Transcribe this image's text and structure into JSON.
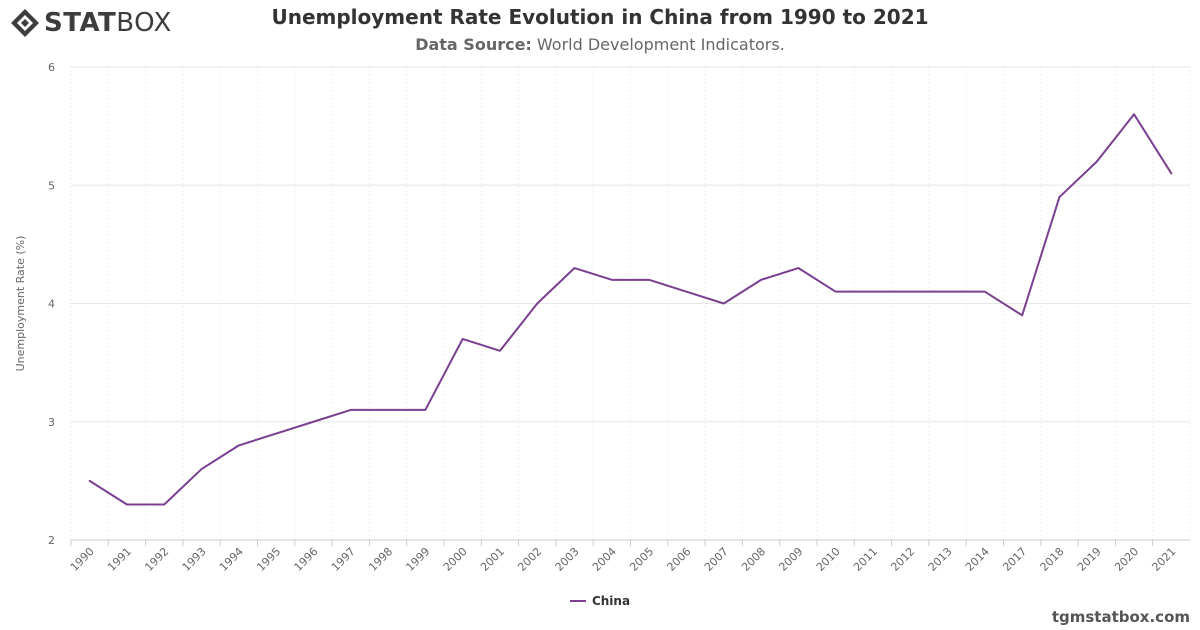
{
  "header": {
    "logo_bold": "STAT",
    "logo_light": "BOX",
    "title": "Unemployment Rate Evolution in China from 1990 to 2021",
    "source_label": "Data Source:",
    "source_value": "World Development Indicators."
  },
  "footer": {
    "credit": "tgmstatbox.com"
  },
  "colors": {
    "series": "#7b3f8f",
    "grid": "#e6e6e6",
    "text": "#333333"
  },
  "chart_data": {
    "type": "line",
    "title": "Unemployment Rate Evolution in China from 1990 to 2021",
    "subtitle": "Data Source: World Development Indicators.",
    "xlabel": "",
    "ylabel": "Unemployment Rate (%)",
    "ylim": [
      2,
      6
    ],
    "yticks": [
      2,
      3,
      4,
      5,
      6
    ],
    "grid": true,
    "legend": "bottom-center",
    "categories": [
      "1990",
      "1991",
      "1992",
      "1993",
      "1994",
      "1995",
      "1996",
      "1997",
      "1998",
      "1999",
      "2000",
      "2001",
      "2002",
      "2003",
      "2004",
      "2005",
      "2006",
      "2007",
      "2008",
      "2009",
      "2010",
      "2011",
      "2012",
      "2013",
      "2014",
      "2017",
      "2018",
      "2019",
      "2020",
      "2021"
    ],
    "series": [
      {
        "name": "China",
        "values": [
          2.5,
          2.3,
          2.3,
          2.6,
          2.8,
          2.9,
          3.0,
          3.1,
          3.1,
          3.1,
          3.7,
          3.6,
          4.0,
          4.3,
          4.2,
          4.2,
          4.1,
          4.0,
          4.2,
          4.3,
          4.1,
          4.1,
          4.1,
          4.1,
          4.1,
          3.9,
          4.9,
          5.2,
          5.6,
          5.1
        ]
      }
    ]
  }
}
